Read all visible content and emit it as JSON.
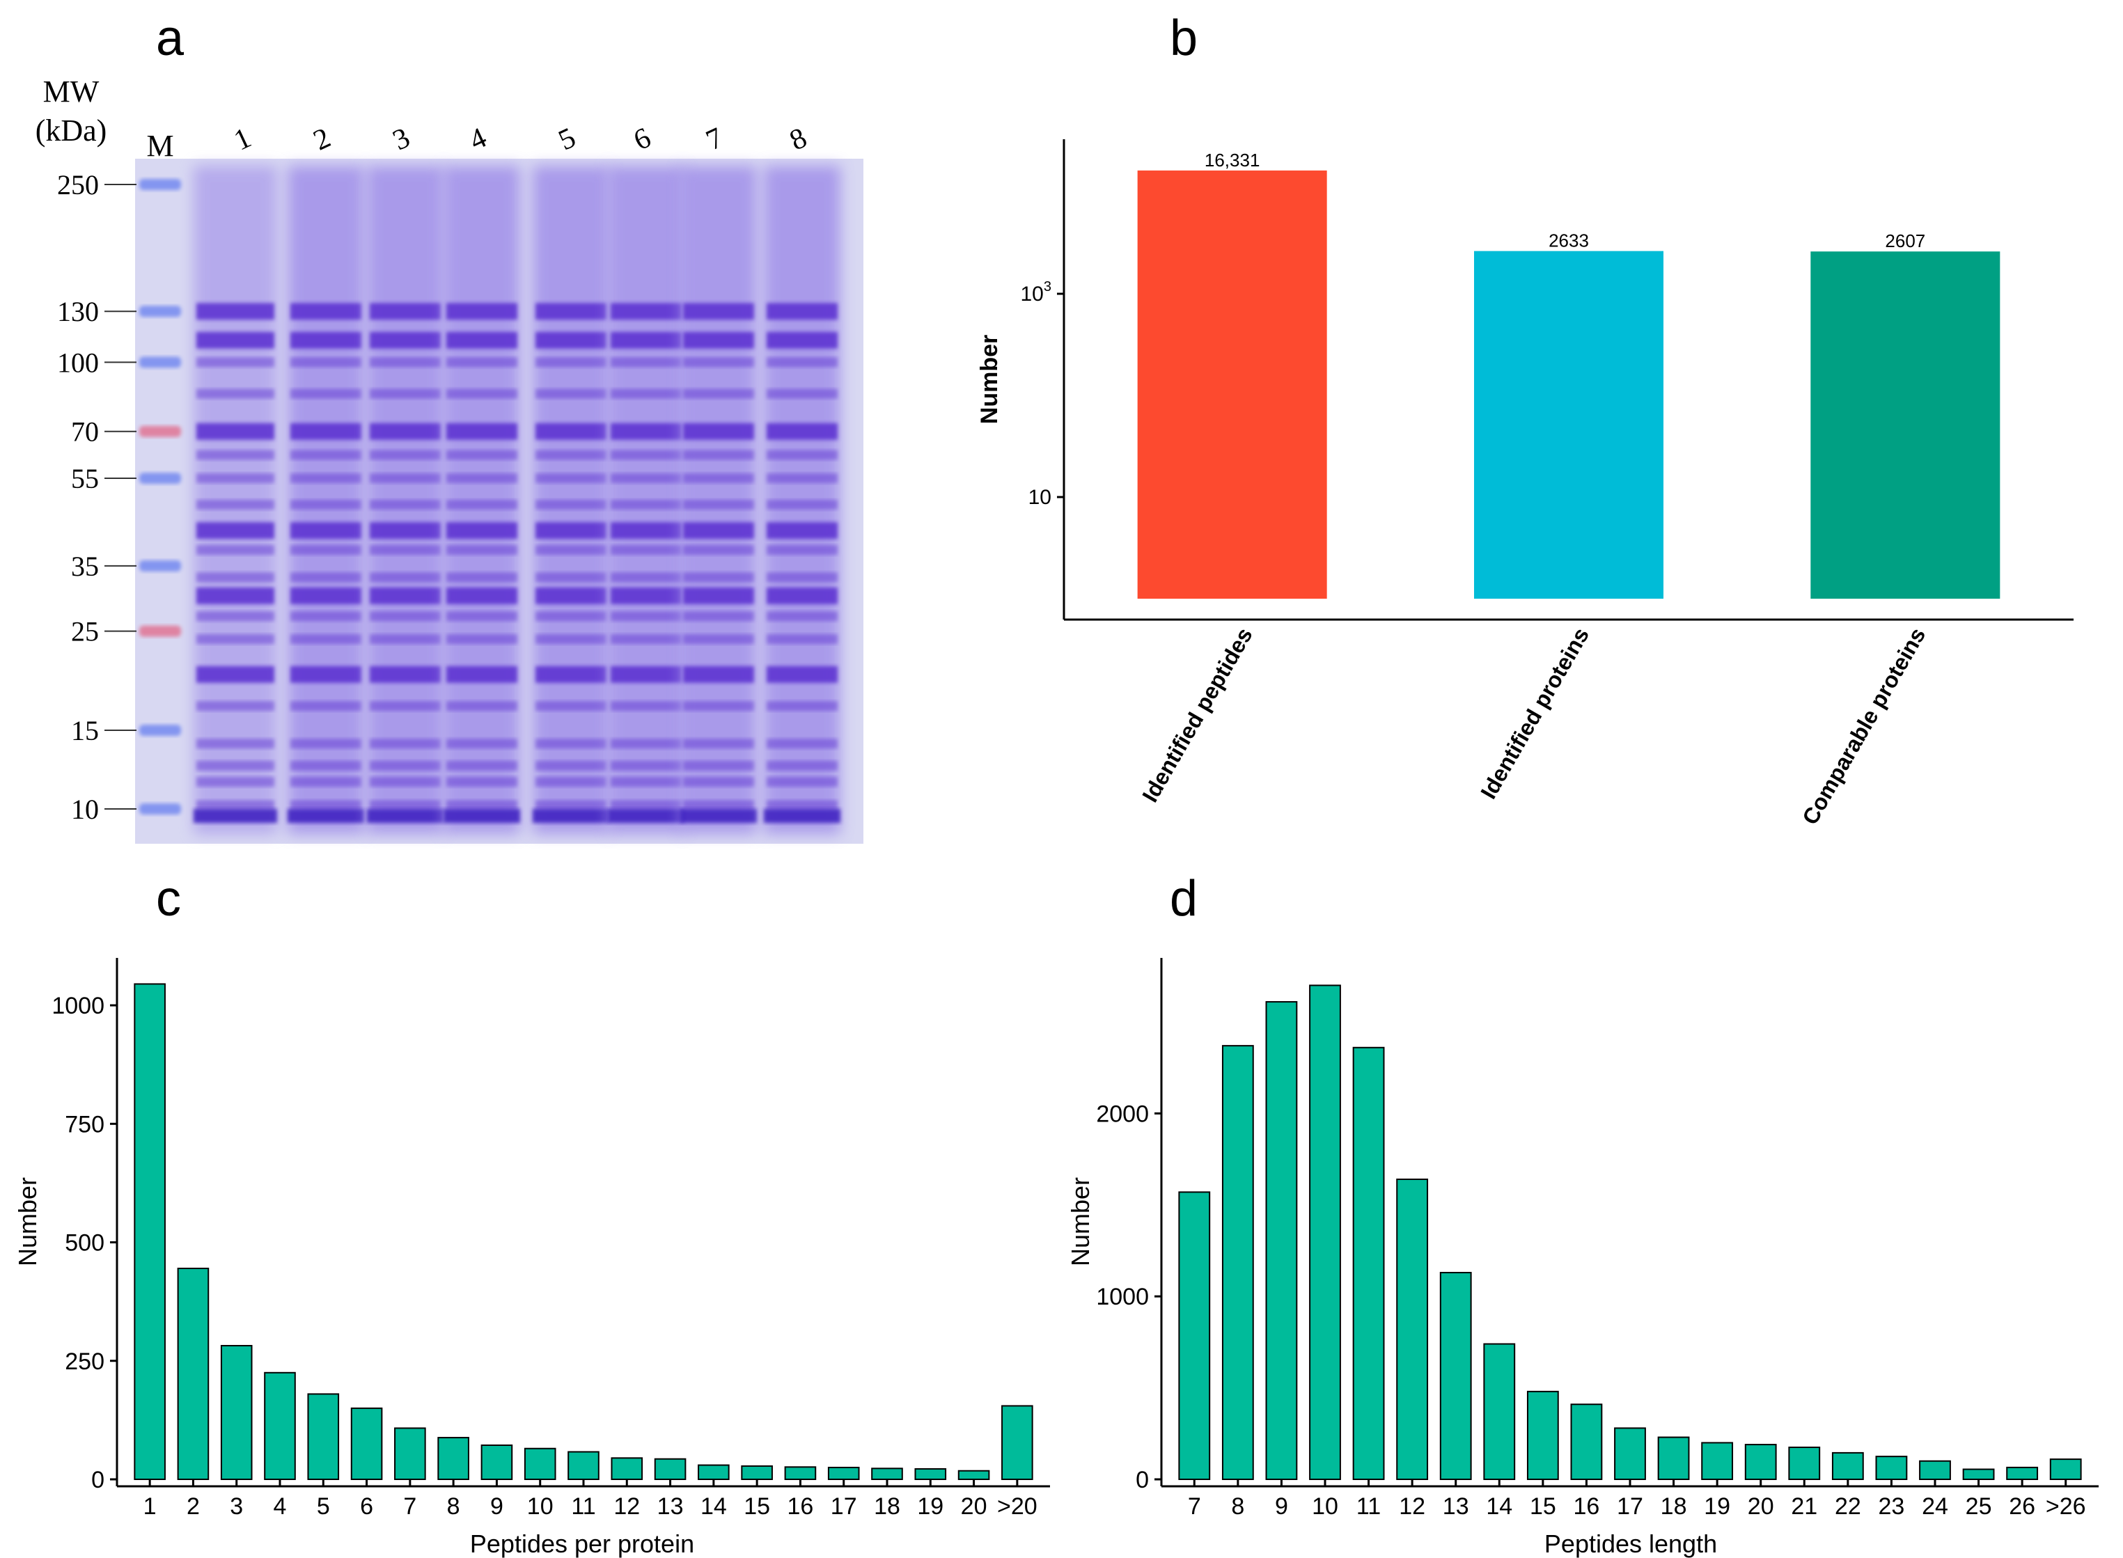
{
  "panel_letters": [
    "a",
    "b",
    "c",
    "d"
  ],
  "gel": {
    "mw_label": "MW",
    "unit_label": "(kDa)",
    "marker_label": "M",
    "lane_labels": [
      "1",
      "2",
      "3",
      "4",
      "5",
      "6",
      "7",
      "8"
    ],
    "markers": [
      250,
      130,
      100,
      70,
      55,
      35,
      25,
      15,
      10
    ],
    "colors": {
      "background": "#d8d8f2",
      "stain": "#5a2fd0",
      "marker_red": "#e07a9a",
      "marker_blue": "#7a8ef0"
    }
  },
  "chart_data": [
    {
      "id": "b",
      "type": "bar",
      "yscale": "log",
      "categories": [
        "Identified peptides",
        "Identified proteins",
        "Comparable proteins"
      ],
      "values": [
        16331,
        2633,
        2607
      ],
      "value_labels": [
        "16,331",
        "2633",
        "2607"
      ],
      "colors": [
        "#fd4a2f",
        "#00bcd7",
        "#00a083"
      ],
      "ylabel": "Number",
      "yticks": [
        {
          "value": 10,
          "base": "10",
          "exp": ""
        },
        {
          "value": 1000,
          "base": "10",
          "exp": "3"
        }
      ],
      "ylim": [
        1,
        30000
      ]
    },
    {
      "id": "c",
      "type": "bar",
      "categories": [
        "1",
        "2",
        "3",
        "4",
        "5",
        "6",
        "7",
        "8",
        "9",
        "10",
        "11",
        "12",
        "13",
        "14",
        "15",
        "16",
        "17",
        "18",
        "19",
        "20",
        ">20"
      ],
      "values": [
        1045,
        445,
        282,
        225,
        180,
        150,
        108,
        88,
        72,
        65,
        58,
        45,
        43,
        30,
        28,
        26,
        25,
        23,
        22,
        18,
        155
      ],
      "xlabel": "Peptides per protein",
      "ylabel": "Number",
      "yticks": [
        0,
        250,
        500,
        750,
        1000
      ],
      "ylim": [
        0,
        1100
      ],
      "color": "#00bb9a"
    },
    {
      "id": "d",
      "type": "bar",
      "categories": [
        "7",
        "8",
        "9",
        "10",
        "11",
        "12",
        "13",
        "14",
        "15",
        "16",
        "17",
        "18",
        "19",
        "20",
        "21",
        "22",
        "23",
        "24",
        "25",
        "26",
        ">26"
      ],
      "values": [
        1570,
        2370,
        2610,
        2700,
        2360,
        1640,
        1130,
        740,
        480,
        410,
        280,
        230,
        200,
        190,
        175,
        145,
        125,
        100,
        55,
        65,
        110
      ],
      "xlabel": "Peptides length",
      "ylabel": "Number",
      "yticks": [
        0,
        1000,
        2000
      ],
      "ylim": [
        0,
        2850
      ],
      "color": "#00bb9a"
    }
  ]
}
